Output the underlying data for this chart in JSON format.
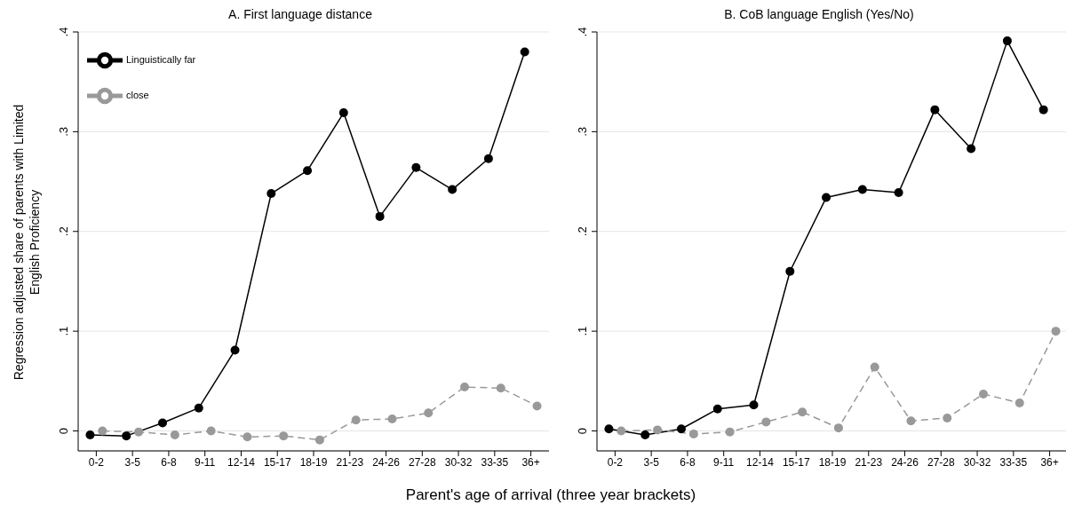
{
  "chart_data": [
    {
      "type": "line",
      "title": "A. First language distance",
      "ylabel": "Regression adjusted share of parents with Limited English Proficiency",
      "xlabel": "Parent's age of arrival (three year brackets)",
      "categories": [
        "0-2",
        "3-5",
        "6-8",
        "9-11",
        "12-14",
        "15-17",
        "18-19",
        "21-23",
        "24-26",
        "27-28",
        "30-32",
        "33-35",
        "36+"
      ],
      "series": [
        {
          "name": "Linguistically far",
          "color": "#000000",
          "line_style": "solid",
          "values": [
            -0.004,
            -0.005,
            0.008,
            0.023,
            0.081,
            0.238,
            0.261,
            0.319,
            0.215,
            0.264,
            0.242,
            0.273,
            0.38
          ]
        },
        {
          "name": "close",
          "color": "#999999",
          "line_style": "dashed",
          "values": [
            0.0,
            -0.001,
            -0.004,
            0.0,
            -0.006,
            -0.005,
            -0.009,
            0.011,
            0.012,
            0.018,
            0.044,
            0.043,
            0.025
          ]
        }
      ],
      "ylim": [
        -0.02,
        0.4
      ],
      "yticks": [
        {
          "value": 0,
          "label": "0"
        },
        {
          "value": 0.1,
          "label": ".1"
        },
        {
          "value": 0.2,
          "label": ".2"
        },
        {
          "value": 0.3,
          "label": ".3"
        },
        {
          "value": 0.4,
          "label": ".4"
        }
      ],
      "grid": "y",
      "legend": "top left",
      "marker": "circle"
    },
    {
      "type": "line",
      "title": "B. CoB language English (Yes/No)",
      "categories": [
        "0-2",
        "3-5",
        "6-8",
        "9-11",
        "12-14",
        "15-17",
        "18-19",
        "21-23",
        "24-26",
        "27-28",
        "30-32",
        "33-35",
        "36+"
      ],
      "series": [
        {
          "color": "#000000",
          "line_style": "solid",
          "values": [
            0.002,
            -0.004,
            0.002,
            0.022,
            0.026,
            0.16,
            0.234,
            0.242,
            0.239,
            0.322,
            0.283,
            0.391,
            0.322
          ]
        },
        {
          "color": "#999999",
          "line_style": "dashed",
          "values": [
            0.0,
            0.001,
            -0.003,
            -0.001,
            0.009,
            0.019,
            0.003,
            0.064,
            0.01,
            0.013,
            0.037,
            0.028,
            0.1
          ]
        }
      ],
      "ylim": [
        -0.02,
        0.4
      ],
      "yticks": [
        {
          "value": 0,
          "label": "0"
        },
        {
          "value": 0.1,
          "label": ".1"
        },
        {
          "value": 0.2,
          "label": ".2"
        },
        {
          "value": 0.3,
          "label": ".3"
        },
        {
          "value": 0.4,
          "label": ".4"
        }
      ],
      "grid": "y",
      "marker": "circle"
    }
  ]
}
